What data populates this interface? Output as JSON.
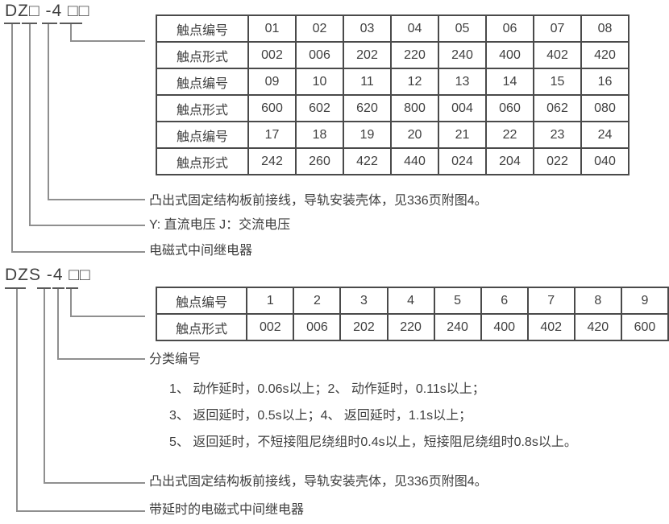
{
  "colors": {
    "text": "#3f3f3f",
    "line": "#8f8f8f",
    "table_border": "#4a4a4a",
    "background": "#ffffff"
  },
  "section_dz": {
    "model_code": "DZ□ -4 □□",
    "table": {
      "rows": [
        [
          "触点编号",
          "01",
          "02",
          "03",
          "04",
          "05",
          "06",
          "07",
          "08"
        ],
        [
          "触点形式",
          "002",
          "006",
          "202",
          "220",
          "240",
          "400",
          "402",
          "420"
        ],
        [
          "触点编号",
          "09",
          "10",
          "11",
          "12",
          "13",
          "14",
          "15",
          "16"
        ],
        [
          "触点形式",
          "600",
          "602",
          "620",
          "800",
          "004",
          "060",
          "062",
          "080"
        ],
        [
          "触点编号",
          "17",
          "18",
          "19",
          "20",
          "21",
          "22",
          "23",
          "24"
        ],
        [
          "触点形式",
          "242",
          "260",
          "422",
          "440",
          "024",
          "204",
          "022",
          "040"
        ]
      ]
    },
    "labels": {
      "case": "凸出式固定结构板前接线，导轨安装壳体，见336页附图4。",
      "voltage": "Y: 直流电压  J：交流电压",
      "type": "电磁式中间继电器"
    }
  },
  "section_dzs": {
    "model_code": "DZS -4 □□",
    "table": {
      "rows": [
        [
          "触点编号",
          "1",
          "2",
          "3",
          "4",
          "5",
          "6",
          "7",
          "8",
          "9"
        ],
        [
          "触点形式",
          "002",
          "006",
          "202",
          "220",
          "240",
          "400",
          "402",
          "420",
          "600"
        ]
      ]
    },
    "labels": {
      "classification": "分类编号",
      "classification_items": [
        "1、 动作延时，0.06s以上；2、 动作延时，0.11s以上；",
        "3、 返回延时，0.5s以上；4、 返回延时，1.1s以上；",
        "5、 返回延时，不短接阻尼绕组时0.4s以上，短接阻尼绕组时0.8s以上。"
      ],
      "case": "凸出式固定结构板前接线，导轨安装壳体，见336页附图4。",
      "type": "带延时的电磁式中间继电器"
    }
  }
}
